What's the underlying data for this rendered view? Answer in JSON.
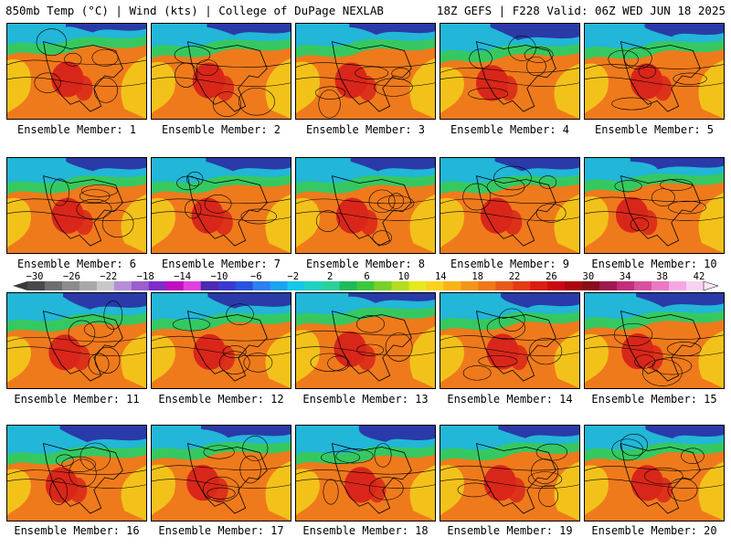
{
  "header": {
    "left": "850mb Temp (°C) | Wind (kts) | College of DuPage NEXLAB",
    "right": "18Z GEFS | F228 Valid: 06Z WED JUN 18 2025"
  },
  "panels": [
    {
      "label": "Ensemble Member: 1"
    },
    {
      "label": "Ensemble Member: 2"
    },
    {
      "label": "Ensemble Member: 3"
    },
    {
      "label": "Ensemble Member: 4"
    },
    {
      "label": "Ensemble Member: 5"
    },
    {
      "label": "Ensemble Member: 6"
    },
    {
      "label": "Ensemble Member: 7"
    },
    {
      "label": "Ensemble Member: 8"
    },
    {
      "label": "Ensemble Member: 9"
    },
    {
      "label": "Ensemble Member: 10"
    },
    {
      "label": "Ensemble Member: 11"
    },
    {
      "label": "Ensemble Member: 12"
    },
    {
      "label": "Ensemble Member: 13"
    },
    {
      "label": "Ensemble Member: 14"
    },
    {
      "label": "Ensemble Member: 15"
    },
    {
      "label": "Ensemble Member: 16"
    },
    {
      "label": "Ensemble Member: 17"
    },
    {
      "label": "Ensemble Member: 18"
    },
    {
      "label": "Ensemble Member: 19"
    },
    {
      "label": "Ensemble Member: 20"
    }
  ],
  "colorbar": {
    "tick_labels": [
      "−30",
      "−26",
      "−22",
      "−18",
      "−14",
      "−10",
      "−6",
      "−2",
      "2",
      "6",
      "10",
      "14",
      "18",
      "22",
      "26",
      "30",
      "34",
      "38",
      "42"
    ],
    "colors": [
      "#4a4a4a",
      "#6e6e6e",
      "#8c8c8c",
      "#a8a8a8",
      "#c8c8c8",
      "#b58fd6",
      "#9b5fd0",
      "#7d2ec8",
      "#c00fc0",
      "#e040e0",
      "#4b2bb0",
      "#3a3ad0",
      "#2a52e0",
      "#2f7ff0",
      "#1aa4f0",
      "#16c8e8",
      "#1fd2c0",
      "#2ad29a",
      "#1fba5a",
      "#3cc83c",
      "#78d02a",
      "#b4dc1e",
      "#e8e81e",
      "#fbd21e",
      "#f7b41a",
      "#f2961a",
      "#ee781a",
      "#e85a18",
      "#e23c14",
      "#d81e12",
      "#c80a10",
      "#a8080e",
      "#880c1a",
      "#a01a50",
      "#c0307a",
      "#d850a0",
      "#ec78c4",
      "#f4a8e0",
      "#fad2f0"
    ]
  },
  "map_colors": {
    "cold": "#2a3aa8",
    "cool": "#22b6d8",
    "mild": "#36c860",
    "warm": "#f2c21a",
    "hot": "#ef7a1c",
    "very_hot": "#d9261a"
  }
}
